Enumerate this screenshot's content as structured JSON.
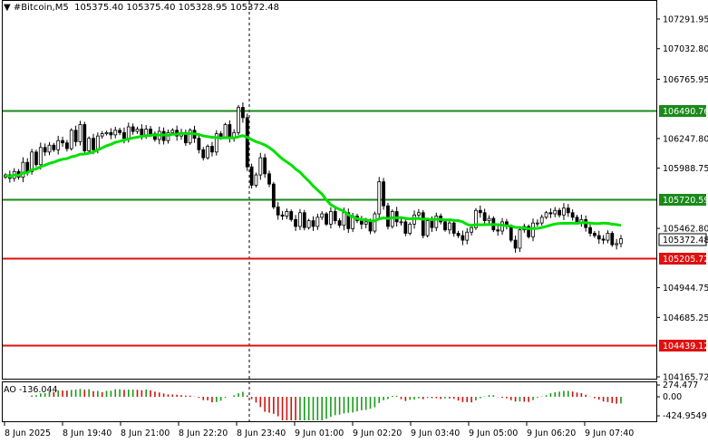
{
  "header": {
    "symbol": "#Bitcoin,M5",
    "open": "105375.40",
    "high": "105375.40",
    "low": "105328.95",
    "close": "105372.48"
  },
  "indicator": {
    "name": "AO",
    "value": "-136.044",
    "scale_top": "274.477",
    "scale_zero": "0.00",
    "scale_bottom": "-424.9549"
  },
  "price_axis": {
    "ticks": [
      "107291.95",
      "107032.80",
      "106765.95",
      "106247.80",
      "105988.75",
      "105462.80",
      "104944.75",
      "104685.25",
      "104165.72"
    ],
    "current_price": "105372.48",
    "current_price_color": "#000000"
  },
  "levels": [
    {
      "price": "106490.76",
      "color": "#1a8a1a"
    },
    {
      "price": "105720.59",
      "color": "#1a8a1a"
    },
    {
      "price": "105205.72",
      "color": "#e01010"
    },
    {
      "price": "104439.12",
      "color": "#e01010"
    }
  ],
  "time_axis": [
    "8 Jun 2025",
    "8 Jun 19:40",
    "8 Jun 21:00",
    "8 Jun 22:20",
    "8 Jun 23:40",
    "9 Jun 01:00",
    "9 Jun 02:20",
    "9 Jun 03:40",
    "9 Jun 05:00",
    "9 Jun 06:20",
    "9 Jun 07:40"
  ],
  "ma_color": "#00e000",
  "chart_data": {
    "type": "candlestick",
    "close": [
      105930,
      105900,
      105960,
      105910,
      106040,
      105960,
      106130,
      106020,
      106170,
      106130,
      106190,
      106150,
      106230,
      106210,
      106160,
      106320,
      106220,
      106370,
      106140,
      106250,
      106150,
      106270,
      106290,
      106300,
      106280,
      106320,
      106300,
      106250,
      106350,
      106310,
      106330,
      106280,
      106330,
      106290,
      106240,
      106310,
      106230,
      106300,
      106320,
      106270,
      106300,
      106210,
      106320,
      106250,
      106150,
      106080,
      106180,
      106130,
      106290,
      106260,
      106370,
      106250,
      106300,
      106520,
      106430,
      106000,
      105840,
      105930,
      106080,
      105940,
      105850,
      105650,
      105580,
      105570,
      105610,
      105540,
      105480,
      105600,
      105470,
      105530,
      105480,
      105560,
      105590,
      105500,
      105610,
      105530,
      105490,
      105600,
      105460,
      105570,
      105530,
      105500,
      105520,
      105440,
      105590,
      105870,
      105660,
      105480,
      105610,
      105520,
      105520,
      105420,
      105500,
      105580,
      105600,
      105400,
      105530,
      105470,
      105570,
      105520,
      105450,
      105510,
      105420,
      105400,
      105360,
      105430,
      105470,
      105620,
      105600,
      105530,
      105550,
      105450,
      105440,
      105520,
      105480,
      105360,
      105290,
      105450,
      105480,
      105390,
      105510,
      105510,
      105560,
      105600,
      105590,
      105620,
      105580,
      105640,
      105600,
      105560,
      105520,
      105540,
      105470,
      105420,
      105400,
      105370,
      105360,
      105420,
      105320,
      105330,
      105372
    ]
  }
}
